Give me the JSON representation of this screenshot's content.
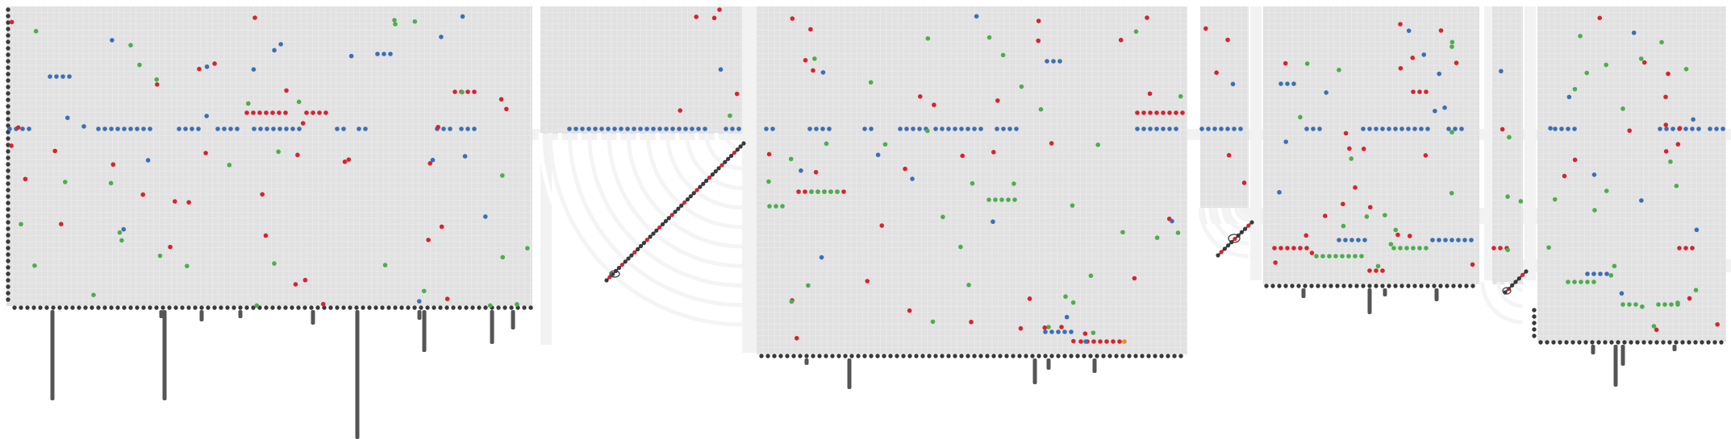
{
  "colors": {
    "background": "#ffffff",
    "panel": "#e1e1e1",
    "grid": "#ebebeb",
    "band": "#f2f2f2",
    "arc": "#f4f4f4",
    "node": "#3a3a3a",
    "stack": "#555555",
    "blue": "#3b6fb6",
    "red": "#d8232f",
    "green": "#4cae4c",
    "orange": "#f08a1b"
  },
  "legend": [],
  "series": [
    {
      "name": "",
      "color": "blue"
    },
    {
      "name": "",
      "color": "red"
    },
    {
      "name": "",
      "color": "green"
    }
  ]
}
